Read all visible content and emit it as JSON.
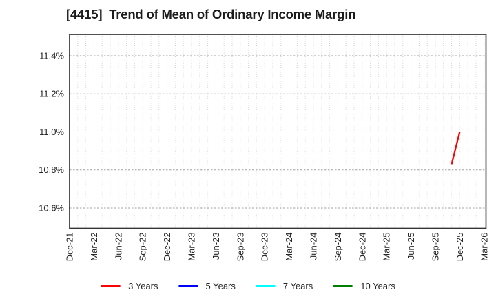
{
  "chart_data": {
    "type": "line",
    "title": "[4415]  Trend of Mean of Ordinary Income Margin",
    "x_axis": {
      "unit": "months_since_first_tick",
      "tick_interval_months": 3,
      "minor_grid_interval_months": 1,
      "xlim_months": [
        0,
        51.23
      ],
      "tick_labels": [
        "Dec-21",
        "Mar-22",
        "Jun-22",
        "Sep-22",
        "Dec-22",
        "Mar-23",
        "Jun-23",
        "Sep-23",
        "Dec-23",
        "Mar-24",
        "Jun-24",
        "Sep-24",
        "Dec-24",
        "Mar-25",
        "Jun-25",
        "Sep-25",
        "Dec-25",
        "Mar-26"
      ]
    },
    "y_axis": {
      "tick_values": [
        10.6,
        10.8,
        11.0,
        11.2,
        11.4
      ],
      "tick_labels": [
        "10.6%",
        "10.8%",
        "11.0%",
        "11.2%",
        "11.4%"
      ],
      "ylim": [
        10.493,
        11.512
      ]
    },
    "grid": {
      "horizontal": "dashed",
      "vertical": "dotted",
      "horizontal_color": "#a0a0a0",
      "vertical_color": "#c9c9c9",
      "border_color": "#333333"
    },
    "series": [
      {
        "name": "3 Years",
        "color": "#ff0000",
        "points": [
          {
            "x_label": "Nov-25",
            "month": 47,
            "value": 10.83
          },
          {
            "x_label": "Dec-25",
            "month": 48,
            "value": 11.0
          }
        ]
      },
      {
        "name": "5 Years",
        "color": "#0000ff",
        "points": []
      },
      {
        "name": "7 Years",
        "color": "#00ffff",
        "points": []
      },
      {
        "name": "10 Years",
        "color": "#008000",
        "points": []
      }
    ],
    "legend_position": "bottom"
  }
}
